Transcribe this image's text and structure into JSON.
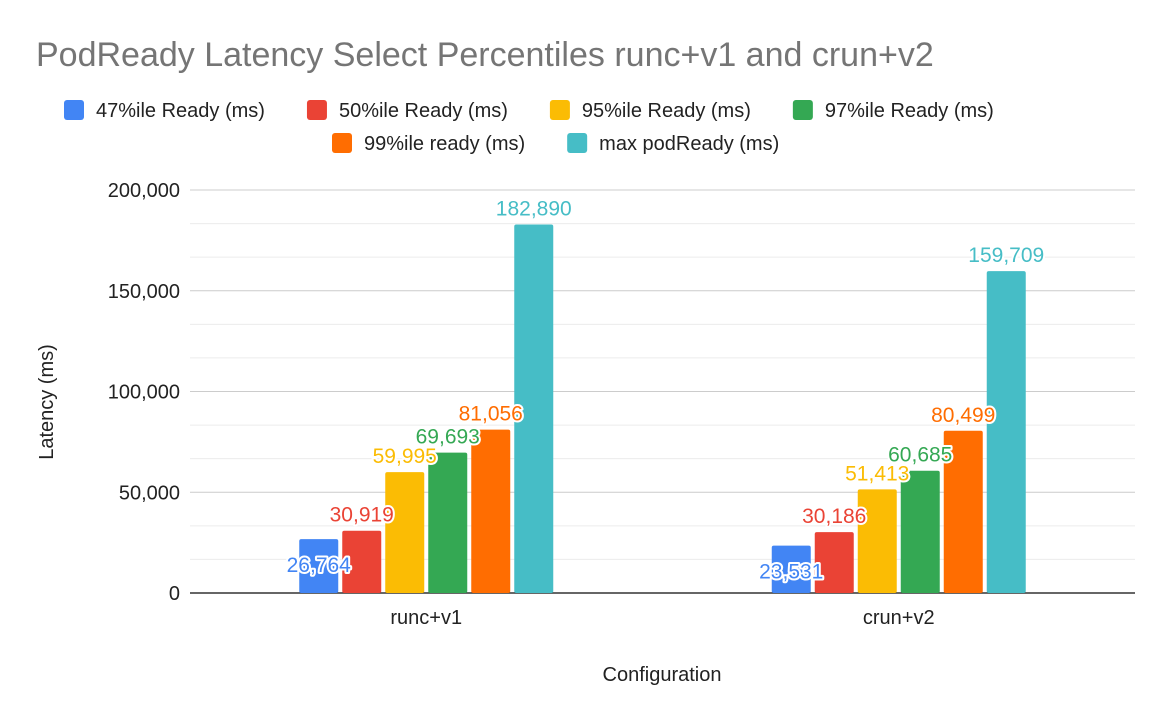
{
  "chart_data": {
    "type": "bar",
    "title": "PodReady Latency Select Percentiles runc+v1 and crun+v2",
    "xlabel": "Configuration",
    "ylabel": "Latency (ms)",
    "ylim": [
      0,
      200000
    ],
    "yticks": [
      0,
      50000,
      100000,
      150000,
      200000
    ],
    "ytick_labels": [
      "0",
      "50,000",
      "100,000",
      "150,000",
      "200,000"
    ],
    "minor_gridlines": true,
    "legend_position": "top",
    "categories": [
      "runc+v1",
      "crun+v2"
    ],
    "series": [
      {
        "name": "47%ile Ready (ms)",
        "color": "#4285f4",
        "values": [
          26764,
          23531
        ],
        "labels": [
          "26,764",
          "23,531"
        ]
      },
      {
        "name": "50%ile Ready (ms)",
        "color": "#ea4335",
        "values": [
          30919,
          30186
        ],
        "labels": [
          "30,919",
          "30,186"
        ]
      },
      {
        "name": "95%ile Ready (ms)",
        "color": "#fbbc04",
        "values": [
          59995,
          51413
        ],
        "labels": [
          "59,995",
          "51,413"
        ]
      },
      {
        "name": "97%ile Ready (ms)",
        "color": "#34a853",
        "values": [
          69693,
          60685
        ],
        "labels": [
          "69,693",
          "60,685"
        ]
      },
      {
        "name": "99%ile ready (ms)",
        "color": "#ff6d01",
        "values": [
          81056,
          80499
        ],
        "labels": [
          "81,056",
          "80,499"
        ]
      },
      {
        "name": "max podReady (ms)",
        "color": "#46bdc6",
        "values": [
          182890,
          159709
        ],
        "labels": [
          "182,890",
          "159,709"
        ]
      }
    ]
  }
}
